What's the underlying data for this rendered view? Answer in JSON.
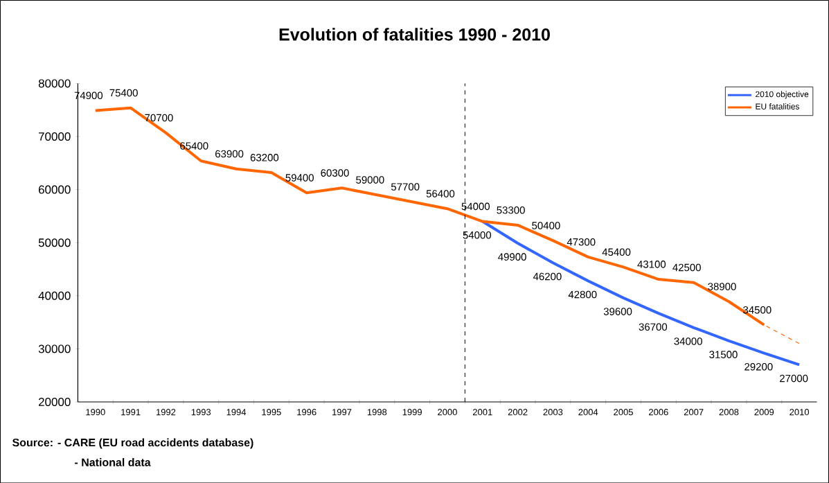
{
  "chart_data": {
    "type": "line",
    "title": "Evolution of fatalities 1990 - 2010",
    "x": [
      1990,
      1991,
      1992,
      1993,
      1994,
      1995,
      1996,
      1997,
      1998,
      1999,
      2000,
      2001,
      2002,
      2003,
      2004,
      2005,
      2006,
      2007,
      2008,
      2009,
      2010
    ],
    "xlim": [
      1989.5,
      2010.5
    ],
    "xticks": [
      1990,
      1991,
      1992,
      1993,
      1994,
      1995,
      1996,
      1997,
      1998,
      1999,
      2000,
      2001,
      2002,
      2003,
      2004,
      2005,
      2006,
      2007,
      2008,
      2009,
      2010
    ],
    "ylim": [
      20000,
      80000
    ],
    "yticks": [
      20000,
      30000,
      40000,
      50000,
      60000,
      70000,
      80000
    ],
    "series": [
      {
        "name": "2010 objective",
        "color": "#3366ff",
        "values": [
          null,
          null,
          null,
          null,
          null,
          null,
          null,
          null,
          null,
          null,
          null,
          54000,
          49900,
          46200,
          42800,
          39600,
          36700,
          34000,
          31500,
          29200,
          27000
        ],
        "value_labels": [
          null,
          null,
          null,
          null,
          null,
          null,
          null,
          null,
          null,
          null,
          null,
          "54000",
          "49900",
          "46200",
          "42800",
          "39600",
          "36700",
          "34000",
          "31500",
          "29200",
          "27000"
        ]
      },
      {
        "name": "EU fatalities",
        "color": "#ff6600",
        "values": [
          74900,
          75400,
          70700,
          65400,
          63900,
          63200,
          59400,
          60300,
          59000,
          57700,
          56400,
          54000,
          53300,
          50400,
          47300,
          45400,
          43100,
          42500,
          38900,
          34500,
          null
        ],
        "value_labels": [
          "74900",
          "75400",
          "70700",
          "65400",
          "63900",
          "63200",
          "59400",
          "60300",
          "59000",
          "57700",
          "56400",
          "54000",
          "53300",
          "50400",
          "47300",
          "45400",
          "43100",
          "42500",
          "38900",
          "34500",
          null
        ]
      },
      {
        "color": "#ff6600",
        "line_style": "dashed",
        "values": [
          null,
          null,
          null,
          null,
          null,
          null,
          null,
          null,
          null,
          null,
          null,
          null,
          null,
          null,
          null,
          null,
          null,
          null,
          null,
          34500,
          31000
        ]
      }
    ],
    "ref_lines": [
      {
        "axis": "x",
        "value": 2000.5,
        "color": "#000000",
        "line_style": "dashed"
      }
    ],
    "legend": "top right",
    "grid": false,
    "marker": "none",
    "annotations": [
      "Source: - CARE (EU road accidents database)",
      "- National data"
    ]
  }
}
